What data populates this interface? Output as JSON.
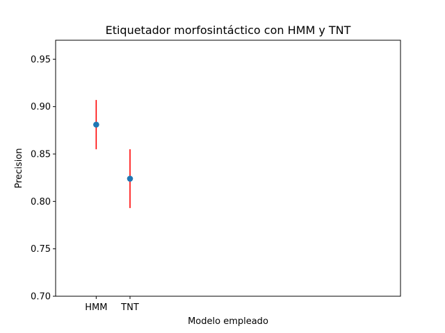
{
  "chart_data": {
    "type": "scatter",
    "title": "Etiquetador morfosintáctico con HMM y TNT",
    "xlabel": "Modelo empleado",
    "ylabel": "Precision",
    "categories": [
      "HMM",
      "TNT"
    ],
    "x_positions": [
      1,
      2
    ],
    "xlim": [
      -0.2,
      10
    ],
    "ylim": [
      0.7,
      0.97
    ],
    "yticks": [
      "0.70",
      "0.75",
      "0.80",
      "0.85",
      "0.90",
      "0.95"
    ],
    "series": [
      {
        "values": [
          0.881,
          0.824
        ],
        "error_low": [
          0.855,
          0.793
        ],
        "error_high": [
          0.907,
          0.855
        ]
      }
    ],
    "grid": false,
    "colors": {
      "marker": "#1f77b4",
      "errorbar": "#ff0000",
      "axes": "#000000"
    }
  }
}
